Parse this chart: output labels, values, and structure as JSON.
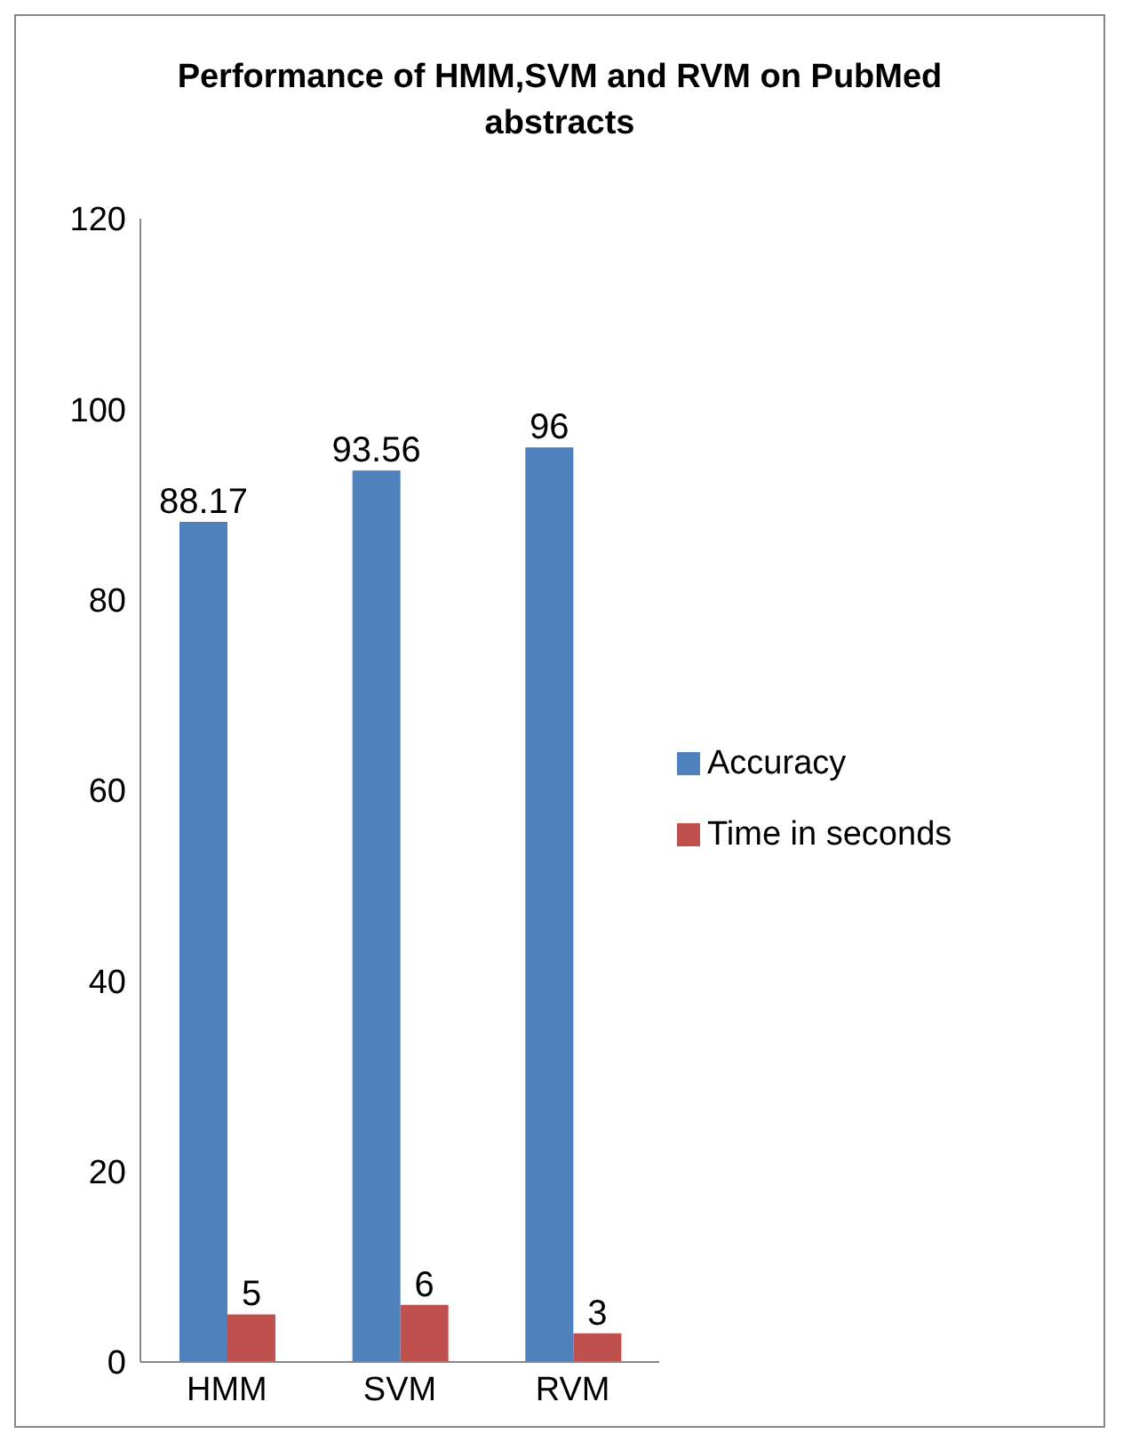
{
  "chart_data": {
    "type": "bar",
    "title": "Performance of HMM,SVM and RVM on PubMed abstracts",
    "categories": [
      "HMM",
      "SVM",
      "RVM"
    ],
    "series": [
      {
        "name": "Accuracy",
        "color": "#4f81bd",
        "values": [
          88.17,
          93.56,
          96
        ]
      },
      {
        "name": "Time in seconds",
        "color": "#c0504d",
        "values": [
          5,
          6,
          3
        ]
      }
    ],
    "ylim": [
      0,
      120
    ],
    "yticks": [
      0,
      20,
      40,
      60,
      80,
      100,
      120
    ],
    "grid": false,
    "legend": "right",
    "data_labels": true
  }
}
